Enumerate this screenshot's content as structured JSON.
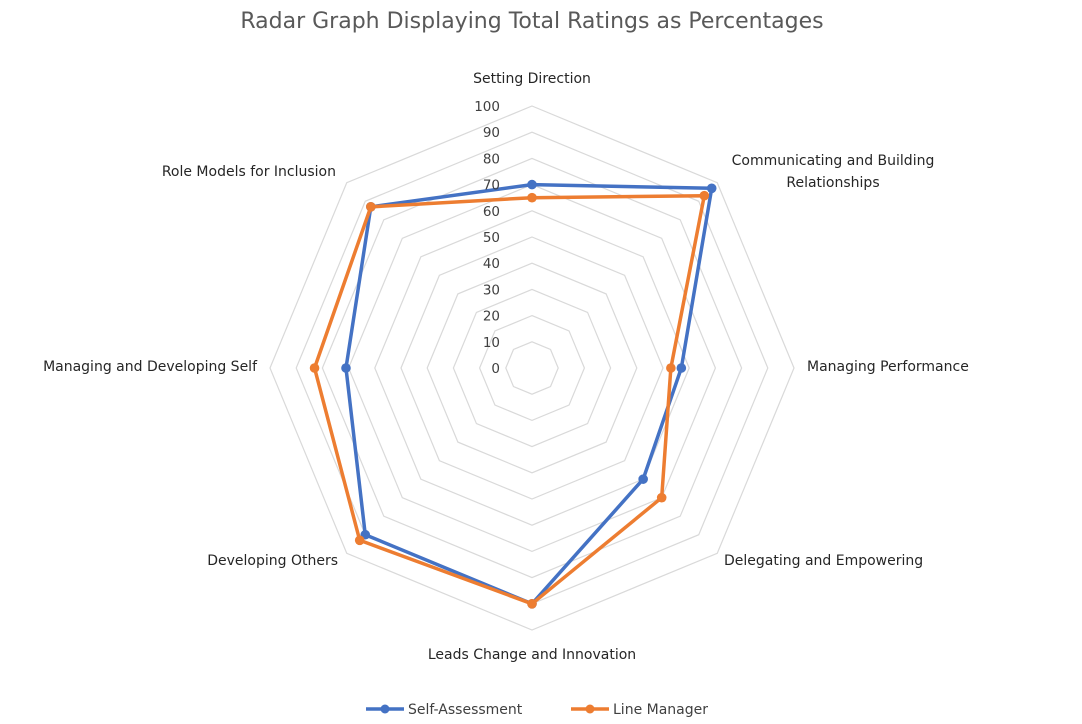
{
  "chart_data": {
    "type": "radar",
    "title": "Radar Graph Displaying Total Ratings as Percentages",
    "categories": [
      "Setting Direction",
      "Communicating and Building Relationships",
      "Managing Performance",
      "Delegating and Empowering",
      "Leads Change and Innovation",
      "Developing Others",
      "Managing and Developing Self",
      "Role Models for Inclusion"
    ],
    "category_lines": [
      [
        "Setting Direction"
      ],
      [
        "Communicating and Building",
        "Relationships"
      ],
      [
        "Managing Performance"
      ],
      [
        "Delegating and Empowering"
      ],
      [
        "Leads Change and Innovation"
      ],
      [
        "Developing Others"
      ],
      [
        "Managing and Developing Self"
      ],
      [
        "Role Models for Inclusion"
      ]
    ],
    "ticks": [
      0,
      10,
      20,
      30,
      40,
      50,
      60,
      70,
      80,
      90,
      100
    ],
    "rlim": [
      0,
      100
    ],
    "series": [
      {
        "name": "Self-Assessment",
        "color": "#4472c4",
        "values": [
          70,
          97,
          57,
          60,
          90,
          90,
          71,
          87
        ]
      },
      {
        "name": "Line Manager",
        "color": "#ed7d31",
        "values": [
          65,
          93,
          53,
          70,
          90,
          93,
          83,
          87
        ]
      }
    ],
    "grid": true,
    "legend": "bottom"
  }
}
